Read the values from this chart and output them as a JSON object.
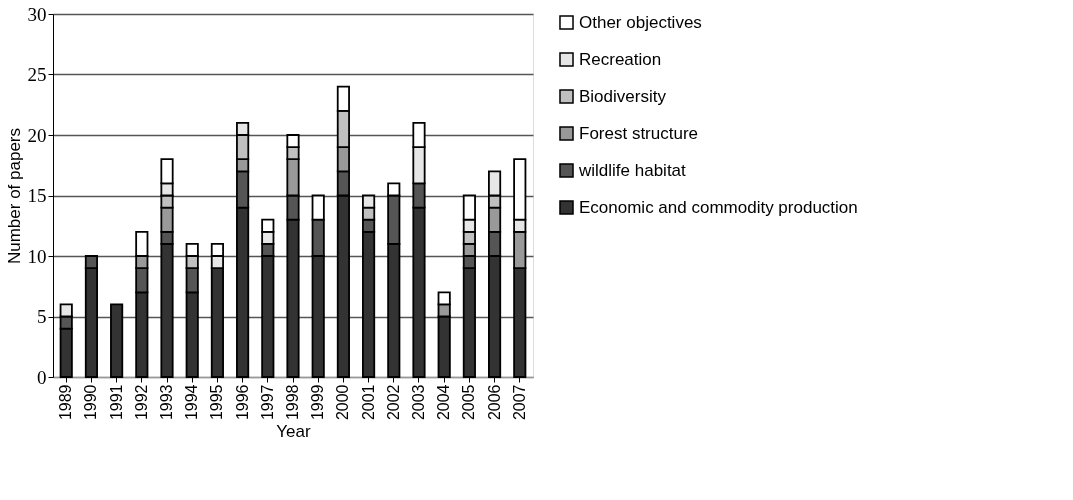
{
  "chart_data": {
    "type": "bar",
    "stacked": true,
    "xlabel": "Year",
    "ylabel": "Number of papers",
    "categories": [
      "1989",
      "1990",
      "1991",
      "1992",
      "1993",
      "1994",
      "1995",
      "1996",
      "1997",
      "1998",
      "1999",
      "2000",
      "2001",
      "2002",
      "2003",
      "2004",
      "2005",
      "2006",
      "2007"
    ],
    "series": [
      {
        "name": "Economic and commodity production",
        "color": "#333333",
        "values": [
          4,
          9,
          6,
          7,
          11,
          7,
          9,
          14,
          10,
          13,
          10,
          15,
          12,
          11,
          14,
          5,
          9,
          10,
          9
        ]
      },
      {
        "name": "wildlife habitat",
        "color": "#555555",
        "values": [
          1,
          1,
          0,
          2,
          1,
          2,
          0,
          3,
          1,
          2,
          3,
          2,
          1,
          4,
          2,
          0,
          1,
          2,
          0
        ]
      },
      {
        "name": "Forest structure",
        "color": "#999999",
        "values": [
          0,
          0,
          0,
          1,
          2,
          0,
          0,
          1,
          0,
          3,
          0,
          2,
          0,
          0,
          0,
          1,
          1,
          2,
          3
        ]
      },
      {
        "name": "Biodiversity",
        "color": "#c0c0c0",
        "values": [
          0,
          0,
          0,
          0,
          1,
          1,
          0,
          2,
          0,
          1,
          0,
          3,
          1,
          0,
          0,
          0,
          1,
          1,
          0
        ]
      },
      {
        "name": "Recreation",
        "color": "#e6e6e6",
        "values": [
          1,
          0,
          0,
          0,
          1,
          0,
          1,
          1,
          1,
          0,
          0,
          0,
          1,
          0,
          3,
          0,
          1,
          2,
          1
        ]
      },
      {
        "name": "Other objectives",
        "color": "#ffffff",
        "values": [
          0,
          0,
          0,
          2,
          2,
          1,
          1,
          0,
          1,
          1,
          2,
          2,
          0,
          1,
          2,
          1,
          2,
          0,
          5
        ]
      }
    ],
    "ylim": [
      0,
      30
    ],
    "yticks": [
      0,
      5,
      10,
      15,
      20,
      25,
      30
    ],
    "grid": "y",
    "legend": "right"
  }
}
